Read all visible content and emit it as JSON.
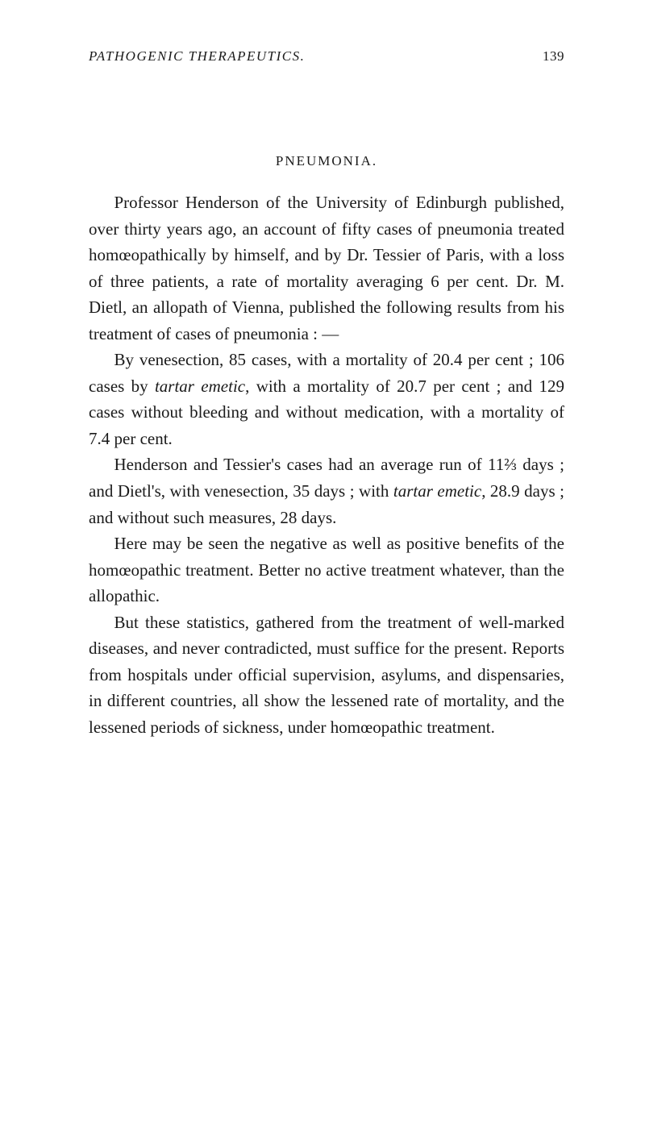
{
  "header": {
    "title": "PATHOGENIC THERAPEUTICS.",
    "page_number": "139"
  },
  "section_title": "PNEUMONIA.",
  "paragraphs": {
    "p1_a": "Professor Henderson of the University of Edinburgh published, over thirty years ago, an account of fifty cases of pneumonia treated homœopathically by himself, and by Dr. Tessier of Paris, with a loss of three patients, a rate of mortality averaging 6 per cent. Dr. M. Dietl, an allopath of Vienna, published the following results from his treatment of cases of pneumonia : —",
    "p2_a": "By venesection, 85 cases, with a mortality of 20.4 per cent ; 106 cases by ",
    "p2_italic1": "tartar emetic",
    "p2_b": ", with a mortality of 20.7 per cent ; and 129 cases without bleeding and without medication, with a mortality of 7.4 per cent.",
    "p3_a": "Henderson and Tessier's cases had an average run of 11⅔ days ; and Dietl's, with venesection, 35 days ; with ",
    "p3_italic1": "tartar emetic",
    "p3_b": ", 28.9 days ; and without such measures, 28 days.",
    "p4_a": "Here may be seen the negative as well as positive benefits of the homœopathic treatment. Better no active treatment whatever, than the allopathic.",
    "p5_a": "But these statistics, gathered from the treatment of well-marked diseases, and never contradicted, must suffice for the present. Reports from hospitals under official supervision, asylums, and dispensaries, in different countries, all show the lessened rate of mortality, and the lessened periods of sickness, under homœopathic treatment."
  }
}
